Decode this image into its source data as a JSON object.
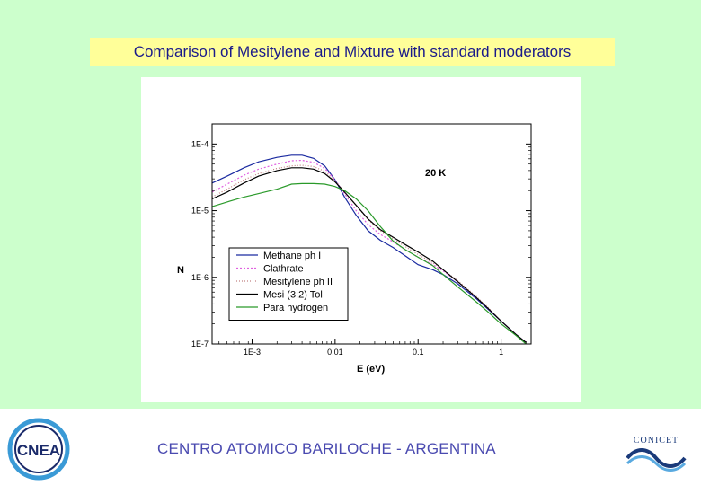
{
  "slide": {
    "title": "Comparison of Mesitylene and Mixture with standard moderators",
    "footer": "CENTRO ATOMICO BARILOCHE - ARGENTINA",
    "logos": {
      "left": "CNEA",
      "right": "CONICET"
    }
  },
  "colors": {
    "panel_bg": "#ccffcc",
    "title_bg": "#ffff99",
    "title_text": "#1a1a8a",
    "footer_text": "#4a4ab0"
  },
  "chart_data": {
    "type": "line",
    "title": "",
    "annotation": "20 K",
    "xlabel": "E (eV)",
    "ylabel": "N",
    "xscale": "log",
    "yscale": "log",
    "xlim": [
      0.00033,
      2.3
    ],
    "ylim": [
      1e-07,
      0.0002
    ],
    "xticks": [
      {
        "value": 0.001,
        "label": "1E-3"
      },
      {
        "value": 0.01,
        "label": "0.01"
      },
      {
        "value": 0.1,
        "label": "0.1"
      },
      {
        "value": 1,
        "label": "1"
      }
    ],
    "yticks": [
      {
        "value": 0.0001,
        "label": "1E-4"
      },
      {
        "value": 1e-05,
        "label": "1E-5"
      },
      {
        "value": 1e-06,
        "label": "1E-6"
      },
      {
        "value": 1e-07,
        "label": "1E-7"
      }
    ],
    "legend_position": "bottom-left",
    "series": [
      {
        "name": "Methane ph I",
        "color": "#1a2aa0",
        "dash": "",
        "points": [
          [
            0.00033,
            2.6e-05
          ],
          [
            0.0005,
            3.3e-05
          ],
          [
            0.0008,
            4.4e-05
          ],
          [
            0.0012,
            5.4e-05
          ],
          [
            0.002,
            6.3e-05
          ],
          [
            0.003,
            6.8e-05
          ],
          [
            0.004,
            6.8e-05
          ],
          [
            0.0055,
            6.1e-05
          ],
          [
            0.0075,
            4.7e-05
          ],
          [
            0.01,
            2.9e-05
          ],
          [
            0.013,
            1.6e-05
          ],
          [
            0.018,
            8.5e-06
          ],
          [
            0.025,
            5e-06
          ],
          [
            0.035,
            3.6e-06
          ],
          [
            0.05,
            2.8e-06
          ],
          [
            0.07,
            2.1e-06
          ],
          [
            0.1,
            1.55e-06
          ],
          [
            0.15,
            1.3e-06
          ],
          [
            0.2,
            1.1e-06
          ],
          [
            0.3,
            8e-07
          ],
          [
            0.5,
            4.8e-07
          ],
          [
            0.7,
            3.3e-07
          ],
          [
            1,
            2.2e-07
          ],
          [
            1.5,
            1.4e-07
          ],
          [
            2,
            1.05e-07
          ]
        ]
      },
      {
        "name": "Clathrate",
        "color": "#e060e0",
        "dash": "2 2",
        "points": [
          [
            0.00033,
            1.9e-05
          ],
          [
            0.0005,
            2.5e-05
          ],
          [
            0.0008,
            3.4e-05
          ],
          [
            0.0012,
            4.2e-05
          ],
          [
            0.002,
            5e-05
          ],
          [
            0.003,
            5.6e-05
          ],
          [
            0.004,
            5.7e-05
          ],
          [
            0.0055,
            5.3e-05
          ],
          [
            0.0075,
            4.3e-05
          ],
          [
            0.01,
            2.9e-05
          ],
          [
            0.013,
            1.8e-05
          ],
          [
            0.018,
            1e-05
          ],
          [
            0.025,
            6.2e-06
          ],
          [
            0.035,
            4.4e-06
          ],
          [
            0.05,
            3.4e-06
          ],
          [
            0.07,
            2.6e-06
          ],
          [
            0.1,
            2e-06
          ],
          [
            0.15,
            1.55e-06
          ],
          [
            0.2,
            1.25e-06
          ],
          [
            0.3,
            8.6e-07
          ],
          [
            0.5,
            5e-07
          ],
          [
            0.7,
            3.4e-07
          ],
          [
            1,
            2.2e-07
          ],
          [
            1.5,
            1.4e-07
          ],
          [
            2,
            1.05e-07
          ]
        ]
      },
      {
        "name": "Mesitylene ph II",
        "color": "#c08080",
        "dash": "1 2",
        "points": [
          [
            0.00033,
            1.6e-05
          ],
          [
            0.0005,
            2.1e-05
          ],
          [
            0.0008,
            2.9e-05
          ],
          [
            0.0012,
            3.6e-05
          ],
          [
            0.002,
            4.3e-05
          ],
          [
            0.003,
            4.7e-05
          ],
          [
            0.004,
            4.8e-05
          ],
          [
            0.0055,
            4.6e-05
          ],
          [
            0.0075,
            3.9e-05
          ],
          [
            0.01,
            2.8e-05
          ],
          [
            0.013,
            1.9e-05
          ],
          [
            0.018,
            1.2e-05
          ],
          [
            0.025,
            7.3e-06
          ],
          [
            0.035,
            5e-06
          ],
          [
            0.05,
            3.8e-06
          ],
          [
            0.07,
            2.9e-06
          ],
          [
            0.1,
            2.2e-06
          ],
          [
            0.15,
            1.65e-06
          ],
          [
            0.2,
            1.3e-06
          ],
          [
            0.3,
            8.9e-07
          ],
          [
            0.5,
            5.2e-07
          ],
          [
            0.7,
            3.5e-07
          ],
          [
            1,
            2.2e-07
          ],
          [
            1.5,
            1.4e-07
          ],
          [
            2,
            1.05e-07
          ]
        ]
      },
      {
        "name": "Mesi (3:2) Tol",
        "color": "#000000",
        "dash": "",
        "points": [
          [
            0.00033,
            1.5e-05
          ],
          [
            0.0005,
            1.9e-05
          ],
          [
            0.0008,
            2.6e-05
          ],
          [
            0.0012,
            3.3e-05
          ],
          [
            0.002,
            4e-05
          ],
          [
            0.003,
            4.4e-05
          ],
          [
            0.004,
            4.4e-05
          ],
          [
            0.0055,
            4.2e-05
          ],
          [
            0.0075,
            3.6e-05
          ],
          [
            0.01,
            2.7e-05
          ],
          [
            0.013,
            1.9e-05
          ],
          [
            0.018,
            1.2e-05
          ],
          [
            0.025,
            7.5e-06
          ],
          [
            0.035,
            5.2e-06
          ],
          [
            0.05,
            4e-06
          ],
          [
            0.07,
            3.1e-06
          ],
          [
            0.1,
            2.4e-06
          ],
          [
            0.15,
            1.75e-06
          ],
          [
            0.2,
            1.3e-06
          ],
          [
            0.3,
            8.6e-07
          ],
          [
            0.5,
            5e-07
          ],
          [
            0.7,
            3.4e-07
          ],
          [
            1,
            2.2e-07
          ],
          [
            1.5,
            1.4e-07
          ],
          [
            2,
            1.05e-07
          ]
        ]
      },
      {
        "name": "Para hydrogen",
        "color": "#2a9a2a",
        "dash": "",
        "points": [
          [
            0.00033,
            1.15e-05
          ],
          [
            0.0005,
            1.35e-05
          ],
          [
            0.0008,
            1.6e-05
          ],
          [
            0.0012,
            1.8e-05
          ],
          [
            0.002,
            2.1e-05
          ],
          [
            0.003,
            2.5e-05
          ],
          [
            0.004,
            2.55e-05
          ],
          [
            0.0055,
            2.55e-05
          ],
          [
            0.0075,
            2.5e-05
          ],
          [
            0.01,
            2.3e-05
          ],
          [
            0.013,
            2e-05
          ],
          [
            0.018,
            1.5e-05
          ],
          [
            0.025,
            1e-05
          ],
          [
            0.035,
            5.8e-06
          ],
          [
            0.05,
            3.5e-06
          ],
          [
            0.07,
            2.6e-06
          ],
          [
            0.1,
            2e-06
          ],
          [
            0.15,
            1.5e-06
          ],
          [
            0.2,
            1.1e-06
          ],
          [
            0.3,
            7.2e-07
          ],
          [
            0.5,
            4.3e-07
          ],
          [
            0.7,
            3e-07
          ],
          [
            1,
            2e-07
          ],
          [
            1.5,
            1.35e-07
          ],
          [
            2,
            1e-07
          ]
        ]
      }
    ]
  }
}
